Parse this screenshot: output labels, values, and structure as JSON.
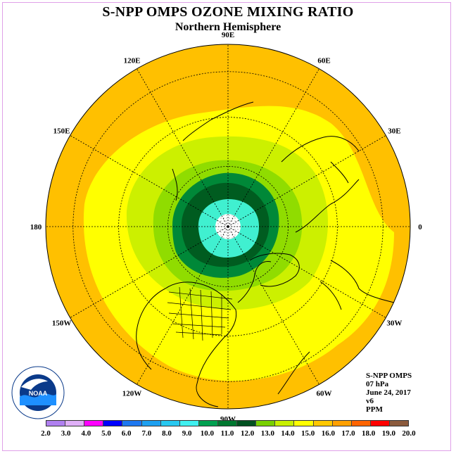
{
  "title": "S-NPP OMPS OZONE MIXING RATIO",
  "subtitle": "Northern Hemisphere",
  "longitude_labels": [
    {
      "text": "90E",
      "lon": 90
    },
    {
      "text": "60E",
      "lon": 60
    },
    {
      "text": "30E",
      "lon": 30
    },
    {
      "text": "0",
      "lon": 0
    },
    {
      "text": "30W",
      "lon": -30
    },
    {
      "text": "60W",
      "lon": -60
    },
    {
      "text": "90W",
      "lon": -90
    },
    {
      "text": "120W",
      "lon": -120
    },
    {
      "text": "150W",
      "lon": -150
    },
    {
      "text": "180",
      "lon": 180
    },
    {
      "text": "150E",
      "lon": 150
    },
    {
      "text": "120E",
      "lon": 120
    }
  ],
  "meta": {
    "instrument": "S-NPP OMPS",
    "level": "07 hPa",
    "date": "June 24, 2017",
    "version": "v6",
    "units": "PPM"
  },
  "logo_text": "NOAA",
  "colorbar": {
    "labels": [
      "2.0",
      "3.0",
      "4.0",
      "5.0",
      "6.0",
      "7.0",
      "8.0",
      "9.0",
      "10.0",
      "11.0",
      "12.0",
      "13.0",
      "14.0",
      "15.0",
      "16.0",
      "17.0",
      "18.0",
      "19.0",
      "20.0"
    ],
    "colors": [
      "#b080f0",
      "#e0b0f8",
      "#ff00ff",
      "#0000ff",
      "#1e78f0",
      "#1ea0f0",
      "#28c8f0",
      "#40f0f0",
      "#00a050",
      "#007830",
      "#005020",
      "#78d000",
      "#c8f000",
      "#ffff00",
      "#ffc800",
      "#ffa000",
      "#ff6400",
      "#ff0000",
      "#8b5a3c"
    ]
  },
  "map_colors": {
    "orange": "#ffc000",
    "yellow": "#ffff00",
    "yellow_green": "#ccf000",
    "light_green": "#90dc00",
    "dark_green_1": "#008838",
    "dark_green_2": "#005c20",
    "cyan": "#40f0d0",
    "no_data": "#ffffff"
  }
}
